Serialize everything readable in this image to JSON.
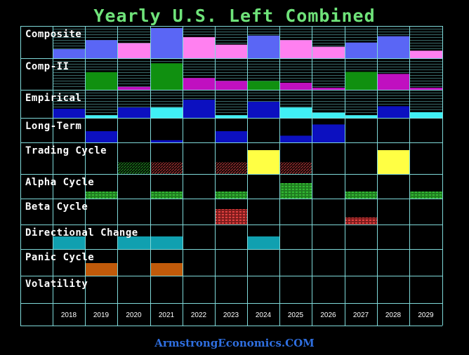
{
  "title": "Yearly U.S. Left Combined",
  "footer": "ArmstrongEconomics.COM",
  "colors": {
    "background": "#000000",
    "grid": "#7fd9d9",
    "composite_base": "#5a66f5",
    "composite_alt": "#ff80f0",
    "comp2_green": "#109010",
    "comp2_magenta": "#c010c0",
    "empirical_blue": "#0c10c0",
    "empirical_cyan": "#40f0f5",
    "longterm": "#0c10c0",
    "trading_yellow": "#ffff44",
    "trading_hatch_green": "#1a6e1a",
    "trading_hatch_red": "#8a2a2a",
    "alpha": "#2aa02a",
    "beta": "#cc3333",
    "directional": "#10a0b0",
    "panic": "#c05a0a"
  },
  "chart_data": {
    "type": "heatmap",
    "title": "Yearly U.S. Left Combined",
    "years": [
      "2018",
      "2019",
      "2020",
      "2021",
      "2022",
      "2023",
      "2024",
      "2025",
      "2026",
      "2027",
      "2028",
      "2029"
    ],
    "rows": [
      {
        "name": "Composite",
        "kind": "bars",
        "max": 10,
        "values": [
          3,
          6,
          5,
          10,
          7,
          4.5,
          7.5,
          6,
          3.8,
          5.2,
          7.3,
          2.5
        ],
        "colors": [
          "composite_base",
          "composite_base",
          "composite_alt",
          "composite_base",
          "composite_alt",
          "composite_alt",
          "composite_base",
          "composite_alt",
          "composite_alt",
          "composite_base",
          "composite_base",
          "composite_alt"
        ]
      },
      {
        "name": "Comp-II",
        "kind": "bars",
        "max": 10,
        "values": [
          0,
          6,
          1,
          9,
          4,
          3,
          2.965,
          2.4,
          0.7,
          6.1,
          5.4,
          0.7
        ],
        "colors": [
          "comp2_green",
          "comp2_green",
          "comp2_magenta",
          "comp2_green",
          "comp2_magenta",
          "comp2_magenta",
          "comp2_green",
          "comp2_magenta",
          "comp2_magenta",
          "comp2_green",
          "comp2_magenta",
          "comp2_magenta"
        ]
      },
      {
        "name": "Empirical",
        "kind": "bars",
        "max": 10,
        "values": [
          3.5,
          1,
          4,
          4,
          7,
          1,
          6.2,
          4,
          2,
          1,
          4.5,
          2.2
        ],
        "colors": [
          "empirical_blue",
          "empirical_cyan",
          "empirical_blue",
          "empirical_cyan",
          "empirical_blue",
          "empirical_cyan",
          "empirical_blue",
          "empirical_cyan",
          "empirical_cyan",
          "empirical_cyan",
          "empirical_blue",
          "empirical_cyan"
        ]
      },
      {
        "name": "Long-Term",
        "kind": "bars",
        "max": 10,
        "values": [
          0,
          5,
          0,
          1,
          0,
          5,
          0,
          3,
          8,
          0,
          0,
          0
        ],
        "colors": [
          "longterm",
          "longterm",
          "longterm",
          "longterm",
          "longterm",
          "longterm",
          "longterm",
          "longterm",
          "longterm",
          "longterm",
          "longterm",
          "longterm"
        ]
      },
      {
        "name": "Trading Cycle",
        "kind": "trading",
        "values": [
          "",
          "",
          "hatch-green",
          "hatch-red",
          "",
          "hatch-red",
          "solid",
          "hatch-red",
          "",
          "",
          "solid",
          ""
        ]
      },
      {
        "name": "Alpha Cycle",
        "kind": "blocks",
        "color": "alpha",
        "values": [
          0,
          1,
          0,
          1,
          0,
          1,
          0,
          2,
          0,
          1,
          0,
          1
        ]
      },
      {
        "name": "Beta Cycle",
        "kind": "blocks",
        "color": "beta",
        "values": [
          0,
          0,
          0,
          0,
          0,
          2,
          0,
          0,
          0,
          1,
          0,
          0
        ]
      },
      {
        "name": "Directional Change",
        "kind": "blocks",
        "color": "directional",
        "values": [
          1,
          0,
          1,
          1,
          0,
          0,
          1,
          0,
          0,
          0,
          0,
          0
        ]
      },
      {
        "name": "Panic Cycle",
        "kind": "blocks",
        "color": "panic",
        "values": [
          0,
          1,
          0,
          1,
          0,
          0,
          0,
          0,
          0,
          0,
          0,
          0
        ]
      },
      {
        "name": "Volatility",
        "kind": "blocks",
        "color": "panic",
        "values": [
          0,
          0,
          0,
          0,
          0,
          0,
          0,
          0,
          0,
          0,
          0,
          0
        ]
      }
    ]
  }
}
